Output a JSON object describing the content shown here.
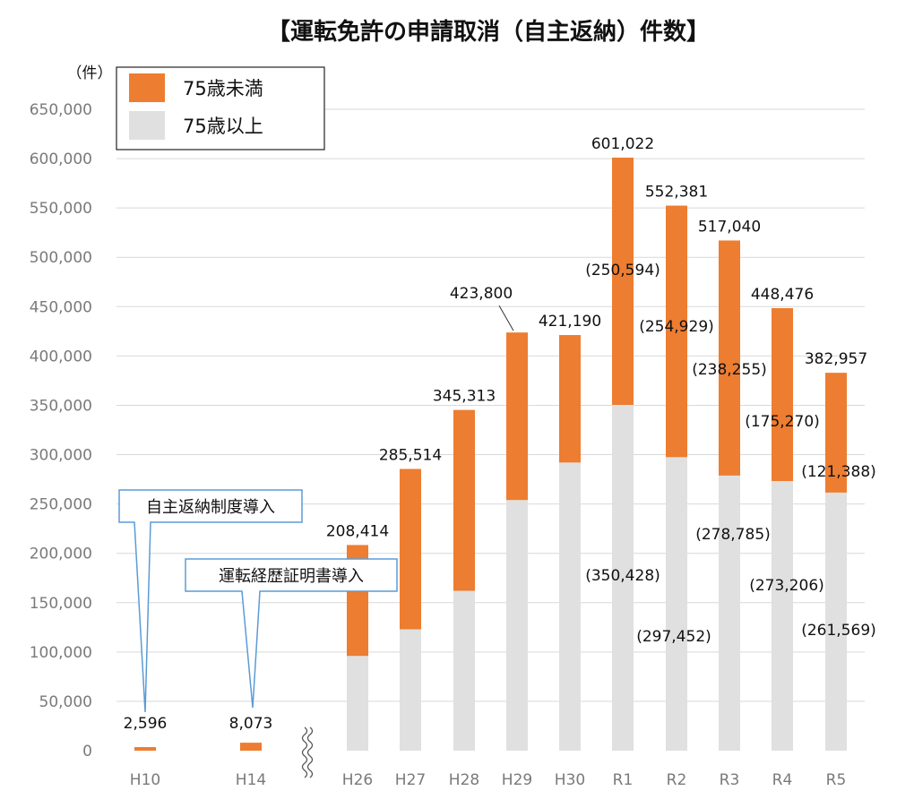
{
  "chart_data": {
    "type": "bar",
    "stacked": true,
    "title": "【運転免許の申請取消（自主返納）件数】",
    "y_unit": "（件）",
    "ylim": [
      0,
      650000
    ],
    "ytick_step": 50000,
    "ytick_labels": [
      "0",
      "50,000",
      "100,000",
      "150,000",
      "200,000",
      "250,000",
      "300,000",
      "350,000",
      "400,000",
      "450,000",
      "500,000",
      "550,000",
      "600,000",
      "650,000"
    ],
    "grid": true,
    "legend_position": "top-left",
    "categories": [
      "H10",
      "H14",
      "H26",
      "H27",
      "H28",
      "H29",
      "H30",
      "R1",
      "R2",
      "R3",
      "R4",
      "R5"
    ],
    "series": [
      {
        "name": "75歳以上",
        "color": "#e0e0e0",
        "values": [
          0,
          0,
          96000,
          123000,
          162000,
          254000,
          292000,
          350428,
          297452,
          278785,
          273206,
          261569
        ]
      },
      {
        "name": "75歳未満",
        "color": "#ed7d31",
        "values": [
          2596,
          8073,
          112414,
          162514,
          183313,
          169800,
          129190,
          250594,
          254929,
          238255,
          175270,
          121388
        ]
      }
    ],
    "totals": [
      2596,
      8073,
      208414,
      285514,
      345313,
      423800,
      421190,
      601022,
      552381,
      517040,
      448476,
      382957
    ],
    "total_labels": [
      "2,596",
      "8,073",
      "208,414",
      "285,514",
      "345,313",
      "423,800",
      "421,190",
      "601,022",
      "552,381",
      "517,040",
      "448,476",
      "382,957"
    ],
    "under75_labels": {
      "R1": "(250,594)",
      "R2": "(254,929)",
      "R3": "(238,255)",
      "R4": "(175,270)",
      "R5": "(121,388)"
    },
    "over75_labels": {
      "R1": "(350,428)",
      "R2": "(297,452)",
      "R3": "(278,785)",
      "R4": "(273,206)",
      "R5": "(261,569)"
    },
    "axis_break_between": [
      "H14",
      "H26"
    ],
    "annotations": [
      {
        "text": "自主返納制度導入",
        "points_to": "H10"
      },
      {
        "text": "運転経歴証明書導入",
        "points_to": "H14"
      }
    ]
  }
}
